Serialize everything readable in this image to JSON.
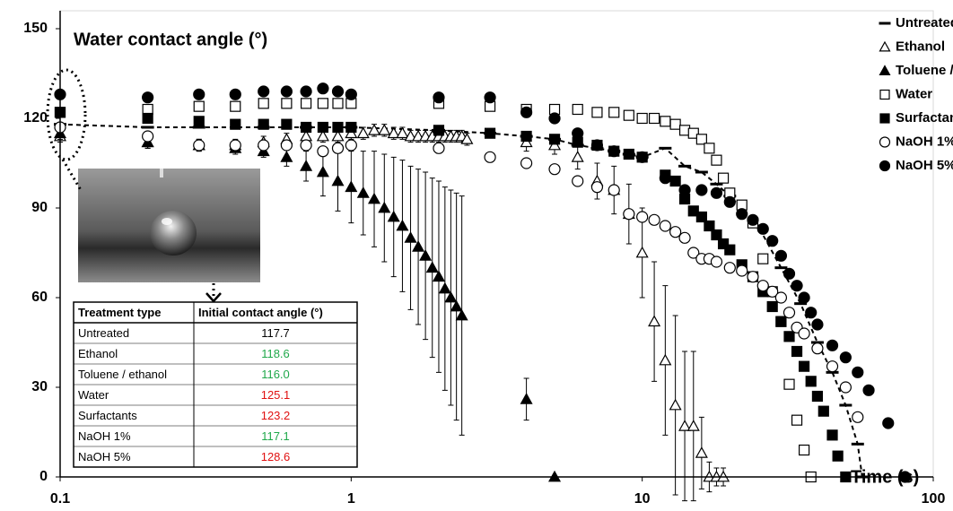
{
  "chart_data": {
    "type": "scatter",
    "title": "Water contact angle (°)",
    "x_label": "Time (s)",
    "xscale": "log",
    "xlim": [
      0.1,
      100
    ],
    "xticks": [
      0.1,
      1,
      10,
      100
    ],
    "ylim": [
      0,
      150
    ],
    "yticks": [
      0,
      30,
      60,
      90,
      120,
      150
    ],
    "grid": false,
    "legend": "top-right",
    "series": [
      {
        "name": "Untreated",
        "marker": "dash",
        "filled": true,
        "color": "#000000",
        "line": "dashed",
        "x": [
          0.1,
          0.2,
          0.3,
          0.5,
          0.7,
          1,
          2,
          3,
          4,
          5,
          6,
          7,
          8,
          9,
          10,
          12,
          14,
          16,
          18,
          20,
          25,
          30,
          35,
          40,
          45,
          50,
          55,
          57
        ],
        "values": [
          118,
          117,
          117,
          117,
          117,
          117,
          116,
          115,
          114,
          113,
          111,
          110,
          109,
          108,
          107,
          110,
          104,
          102,
          98,
          94,
          84,
          70,
          58,
          45,
          35,
          24,
          11,
          0
        ]
      },
      {
        "name": "Ethanol",
        "marker": "triangle",
        "filled": false,
        "color": "#000000",
        "x": [
          0.1,
          0.2,
          0.3,
          0.4,
          0.5,
          0.6,
          0.7,
          0.8,
          0.9,
          1,
          1.1,
          1.2,
          1.3,
          1.4,
          1.5,
          1.6,
          1.7,
          1.8,
          1.9,
          2,
          2.1,
          2.2,
          2.3,
          2.4,
          2.5,
          4,
          5,
          6,
          7,
          8,
          9,
          10,
          11,
          12,
          13,
          14,
          15,
          16,
          17,
          18,
          19
        ],
        "values": [
          114,
          112,
          111,
          111,
          112,
          113,
          114,
          114,
          114,
          115,
          115,
          116,
          116,
          115,
          115,
          114,
          114,
          114,
          114,
          114,
          114,
          114,
          114,
          114,
          113,
          112,
          111,
          107,
          99,
          96,
          88,
          75,
          52,
          39,
          24,
          17,
          17,
          8,
          0,
          0,
          0
        ],
        "errors": [
          2,
          2,
          2,
          2,
          2,
          2,
          2,
          2,
          2,
          2,
          2,
          2,
          2,
          2,
          2,
          2,
          2,
          2,
          2,
          2,
          2,
          2,
          2,
          2,
          2,
          3,
          3,
          4,
          6,
          8,
          10,
          15,
          20,
          25,
          30,
          25,
          25,
          12,
          5,
          3,
          3
        ]
      },
      {
        "name": "Toluene / ethanol",
        "marker": "triangle",
        "filled": true,
        "color": "#000000",
        "x": [
          0.1,
          0.2,
          0.3,
          0.4,
          0.5,
          0.6,
          0.7,
          0.8,
          0.9,
          1,
          1.1,
          1.2,
          1.3,
          1.4,
          1.5,
          1.6,
          1.7,
          1.8,
          1.9,
          2,
          2.1,
          2.2,
          2.3,
          2.4,
          4,
          5
        ],
        "values": [
          115,
          112,
          111,
          110,
          109,
          107,
          104,
          102,
          99,
          97,
          95,
          93,
          90,
          87,
          84,
          80,
          77,
          74,
          70,
          67,
          63,
          60,
          57,
          54,
          26,
          0
        ],
        "errors": [
          2,
          2,
          2,
          2,
          2,
          3,
          5,
          8,
          10,
          12,
          14,
          16,
          18,
          20,
          22,
          24,
          26,
          28,
          30,
          32,
          34,
          36,
          38,
          40,
          7,
          0
        ]
      },
      {
        "name": "Water",
        "marker": "square",
        "filled": false,
        "color": "#000000",
        "x": [
          0.1,
          0.2,
          0.3,
          0.4,
          0.5,
          0.6,
          0.7,
          0.8,
          0.9,
          1,
          2,
          3,
          4,
          5,
          6,
          7,
          8,
          9,
          10,
          11,
          12,
          13,
          14,
          15,
          16,
          17,
          18,
          19,
          20,
          22,
          24,
          26,
          28,
          30,
          32,
          34,
          36,
          38
        ],
        "values": [
          122,
          123,
          124,
          124,
          125,
          125,
          125,
          125,
          125,
          125,
          125,
          124,
          123,
          123,
          123,
          122,
          122,
          121,
          120,
          120,
          119,
          118,
          116,
          115,
          113,
          110,
          106,
          100,
          95,
          91,
          85,
          73,
          62,
          52,
          31,
          19,
          9,
          0
        ]
      },
      {
        "name": "Surfactants",
        "marker": "square",
        "filled": true,
        "color": "#000000",
        "x": [
          0.1,
          0.2,
          0.3,
          0.4,
          0.5,
          0.6,
          0.7,
          0.8,
          0.9,
          1,
          2,
          3,
          4,
          5,
          6,
          7,
          8,
          9,
          10,
          12,
          13,
          14,
          15,
          16,
          17,
          18,
          19,
          20,
          22,
          24,
          26,
          28,
          30,
          32,
          34,
          36,
          38,
          40,
          42,
          45,
          47,
          50
        ],
        "values": [
          122,
          120,
          119,
          118,
          118,
          118,
          117,
          117,
          117,
          117,
          116,
          115,
          114,
          113,
          112,
          111,
          109,
          108,
          107,
          101,
          99,
          93,
          89,
          87,
          84,
          81,
          78,
          76,
          71,
          67,
          62,
          57,
          52,
          47,
          42,
          37,
          32,
          27,
          22,
          14,
          7,
          0
        ]
      },
      {
        "name": "NaOH 1%",
        "marker": "circle",
        "filled": false,
        "color": "#000000",
        "x": [
          0.1,
          0.2,
          0.3,
          0.4,
          0.5,
          0.6,
          0.7,
          0.8,
          0.9,
          1,
          2,
          3,
          4,
          5,
          6,
          7,
          8,
          9,
          10,
          11,
          12,
          13,
          14,
          15,
          16,
          17,
          18,
          20,
          22,
          24,
          26,
          28,
          30,
          32,
          34,
          36,
          40,
          45,
          50,
          55
        ],
        "values": [
          117,
          114,
          111,
          111,
          111,
          111,
          111,
          109,
          110,
          111,
          110,
          107,
          105,
          103,
          99,
          97,
          96,
          88,
          87,
          86,
          84,
          82,
          80,
          75,
          73,
          73,
          72,
          70,
          69,
          67,
          64,
          62,
          60,
          55,
          50,
          48,
          43,
          37,
          30,
          20
        ]
      },
      {
        "name": "NaOH 5%",
        "marker": "circle",
        "filled": true,
        "color": "#000000",
        "x": [
          0.1,
          0.2,
          0.3,
          0.4,
          0.5,
          0.6,
          0.7,
          0.8,
          0.9,
          1,
          2,
          3,
          4,
          5,
          6,
          7,
          8,
          10,
          12,
          14,
          16,
          18,
          20,
          22,
          24,
          26,
          28,
          30,
          32,
          34,
          36,
          38,
          40,
          45,
          50,
          55,
          60,
          70,
          80
        ],
        "values": [
          128,
          127,
          128,
          128,
          129,
          129,
          129,
          130,
          129,
          128,
          127,
          127,
          122,
          120,
          115,
          111,
          109,
          107,
          100,
          96,
          96,
          95,
          92,
          88,
          86,
          83,
          79,
          74,
          68,
          64,
          60,
          55,
          51,
          44,
          40,
          35,
          29,
          18,
          0
        ]
      }
    ],
    "inset_table": {
      "header": [
        "Treatment type",
        "Initial contact angle (°)"
      ],
      "rows": [
        [
          "Untreated",
          "117.7"
        ],
        [
          "Ethanol",
          "118.6"
        ],
        [
          "Toluene / ethanol",
          "116.0"
        ],
        [
          "Water",
          "125.1"
        ],
        [
          "Surfactants",
          "123.2"
        ],
        [
          "NaOH 1%",
          "117.1"
        ],
        [
          "NaOH 5%",
          "128.6"
        ]
      ],
      "value_colors": [
        "#000000",
        "#1fa84a",
        "#1fa84a",
        "#e01010",
        "#e01010",
        "#1fa84a",
        "#e01010"
      ]
    }
  }
}
